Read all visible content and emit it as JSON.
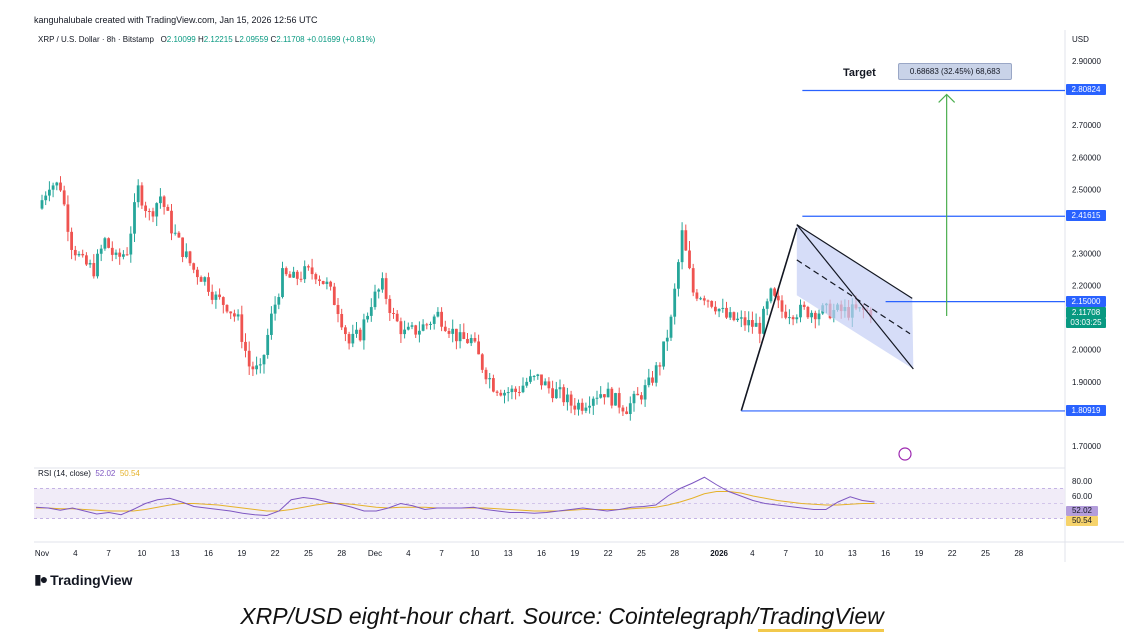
{
  "header": {
    "created_by": "kanguhalubale created with TradingView.com, Jan 15, 2026 12:56 UTC",
    "symbol": "XRP / U.S. Dollar · 8h · Bitstamp",
    "ohlc": {
      "o_label": "O",
      "o": "2.10099",
      "h_label": "H",
      "h": "2.12215",
      "l_label": "L",
      "l": "2.09559",
      "c_label": "C",
      "c": "2.11708",
      "change": "+0.01699 (+0.81%)"
    },
    "currency": "USD"
  },
  "annotations": {
    "target_label": "Target",
    "measure_text": "0.68683 (32.45%) 68,683",
    "price_tags": [
      {
        "value": "2.80824",
        "price": 2.80824,
        "style": "blue"
      },
      {
        "value": "2.41615",
        "price": 2.41615,
        "style": "blue"
      },
      {
        "value": "2.15000",
        "price": 2.15,
        "style": "blue"
      },
      {
        "value": "1.80919",
        "price": 1.80919,
        "style": "blue"
      }
    ],
    "last_price": {
      "value": "2.11708",
      "countdown": "03:03:25",
      "price": 2.11708
    },
    "horizontal_levels": [
      2.80824,
      2.41615,
      2.15,
      1.80919
    ],
    "flag_channel": {
      "upper": [
        [
          5.0,
          2.39
        ],
        [
          15.4,
          2.16
        ]
      ],
      "lower": [
        [
          5.0,
          2.17
        ],
        [
          15.5,
          1.94
        ]
      ],
      "mid": [
        [
          5.0,
          2.28
        ],
        [
          15.2,
          2.05
        ]
      ]
    },
    "flag_pole": [
      [
        0.0,
        1.81
      ],
      [
        5.0,
        2.38
      ]
    ],
    "breakout_arrow": {
      "x": 18.5,
      "from": 2.105,
      "to": 2.80824
    }
  },
  "rsi": {
    "label": "RSI (14, close)",
    "value": "52.02",
    "ma_value": "50.54",
    "levels": [
      "80.00",
      "60.00"
    ],
    "colors": {
      "rsi": "#7e57c2",
      "ma": "#e5b22a"
    }
  },
  "footer": {
    "brand": "TradingView",
    "caption_prefix": "XRP/USD eight-hour chart. Source: Cointelegraph/",
    "caption_link": "TradingView"
  },
  "colors": {
    "up": "#26a69a",
    "down": "#ef5350",
    "level": "#2962ff",
    "channel_fill": "#c5cff5",
    "arrow": "#4caf50"
  },
  "chart_data": {
    "type": "candlestick",
    "title": "",
    "y_axis": {
      "min": 1.65,
      "max": 2.95,
      "ticks": [
        "2.90000",
        "2.70000",
        "2.60000",
        "2.50000",
        "2.30000",
        "2.20000",
        "2.00000",
        "1.90000",
        "1.70000"
      ]
    },
    "x_ticks": [
      "Nov",
      "4",
      "7",
      "10",
      "13",
      "16",
      "19",
      "22",
      "25",
      "28",
      "Dec",
      "4",
      "7",
      "10",
      "13",
      "16",
      "19",
      "22",
      "25",
      "28",
      "2026",
      "4",
      "7",
      "10",
      "13",
      "16",
      "19",
      "22",
      "25",
      "28"
    ],
    "x_tick_days": [
      0,
      3,
      6,
      9,
      12,
      15,
      18,
      21,
      24,
      27,
      30,
      33,
      36,
      39,
      42,
      45,
      48,
      51,
      54,
      57,
      61,
      64,
      67,
      70,
      73,
      76,
      79,
      82,
      85,
      88
    ],
    "close_series": {
      "day": [
        0,
        1,
        2,
        3,
        4,
        5,
        6,
        7,
        8,
        9,
        10,
        11,
        12,
        13,
        14,
        15,
        16,
        17,
        18,
        19,
        20,
        21,
        22,
        23,
        24,
        25,
        26,
        27,
        28,
        29,
        30,
        31,
        32,
        33,
        34,
        35,
        36,
        37,
        38,
        39,
        40,
        41,
        42,
        43,
        44,
        45,
        46,
        47,
        48,
        49,
        50,
        51,
        52,
        53,
        54,
        55,
        56,
        57,
        58,
        59,
        60,
        61,
        62,
        63,
        64,
        65,
        66,
        67,
        68,
        69,
        70,
        71,
        72,
        73,
        74,
        75
      ],
      "close": [
        2.44,
        2.52,
        2.51,
        2.33,
        2.27,
        2.25,
        2.34,
        2.28,
        2.31,
        2.5,
        2.42,
        2.48,
        2.38,
        2.31,
        2.25,
        2.22,
        2.16,
        2.14,
        2.09,
        1.95,
        1.93,
        2.1,
        2.23,
        2.22,
        2.24,
        2.24,
        2.2,
        2.13,
        2.02,
        2.05,
        2.15,
        2.2,
        2.1,
        2.05,
        2.06,
        2.08,
        2.11,
        2.07,
        2.03,
        2.03,
        1.95,
        1.89,
        1.87,
        1.87,
        1.9,
        1.91,
        1.88,
        1.86,
        1.83,
        1.83,
        1.86,
        1.87,
        1.84,
        1.82,
        1.85,
        1.89,
        1.96,
        2.09,
        2.36,
        2.18,
        2.17,
        2.14,
        2.1,
        2.09,
        2.08,
        2.07,
        2.17,
        2.12,
        2.12,
        2.12,
        2.12,
        2.12,
        2.12,
        2.12,
        2.12,
        2.12
      ],
      "note_days": "day index from Nov 1"
    },
    "rsi_series": [
      45,
      44,
      41,
      44,
      40,
      36,
      38,
      35,
      42,
      50,
      55,
      57,
      52,
      46,
      44,
      42,
      40,
      37,
      35,
      34,
      40,
      55,
      58,
      56,
      52,
      49,
      45,
      40,
      40,
      44,
      50,
      47,
      42,
      44,
      44,
      44,
      45,
      42,
      40,
      38,
      38,
      37,
      38,
      40,
      42,
      44,
      42,
      40,
      42,
      45,
      46,
      48,
      60,
      70,
      77,
      85,
      75,
      66,
      60,
      54,
      50,
      48,
      46,
      44,
      42,
      42,
      52,
      59,
      54,
      52
    ],
    "rsi_ma_series": [
      44,
      44,
      43,
      43,
      42,
      41,
      40,
      40,
      40,
      42,
      45,
      48,
      50,
      50,
      49,
      48,
      46,
      44,
      42,
      40,
      40,
      42,
      45,
      48,
      50,
      50,
      49,
      47,
      45,
      44,
      45,
      45,
      45,
      44,
      44,
      44,
      44,
      44,
      43,
      42,
      41,
      40,
      40,
      40,
      41,
      42,
      42,
      42,
      42,
      43,
      44,
      45,
      48,
      52,
      57,
      63,
      66,
      66,
      64,
      60,
      57,
      54,
      52,
      50,
      49,
      48,
      48,
      49,
      50,
      50
    ],
    "legend": [],
    "annotations": [
      "Target"
    ]
  }
}
